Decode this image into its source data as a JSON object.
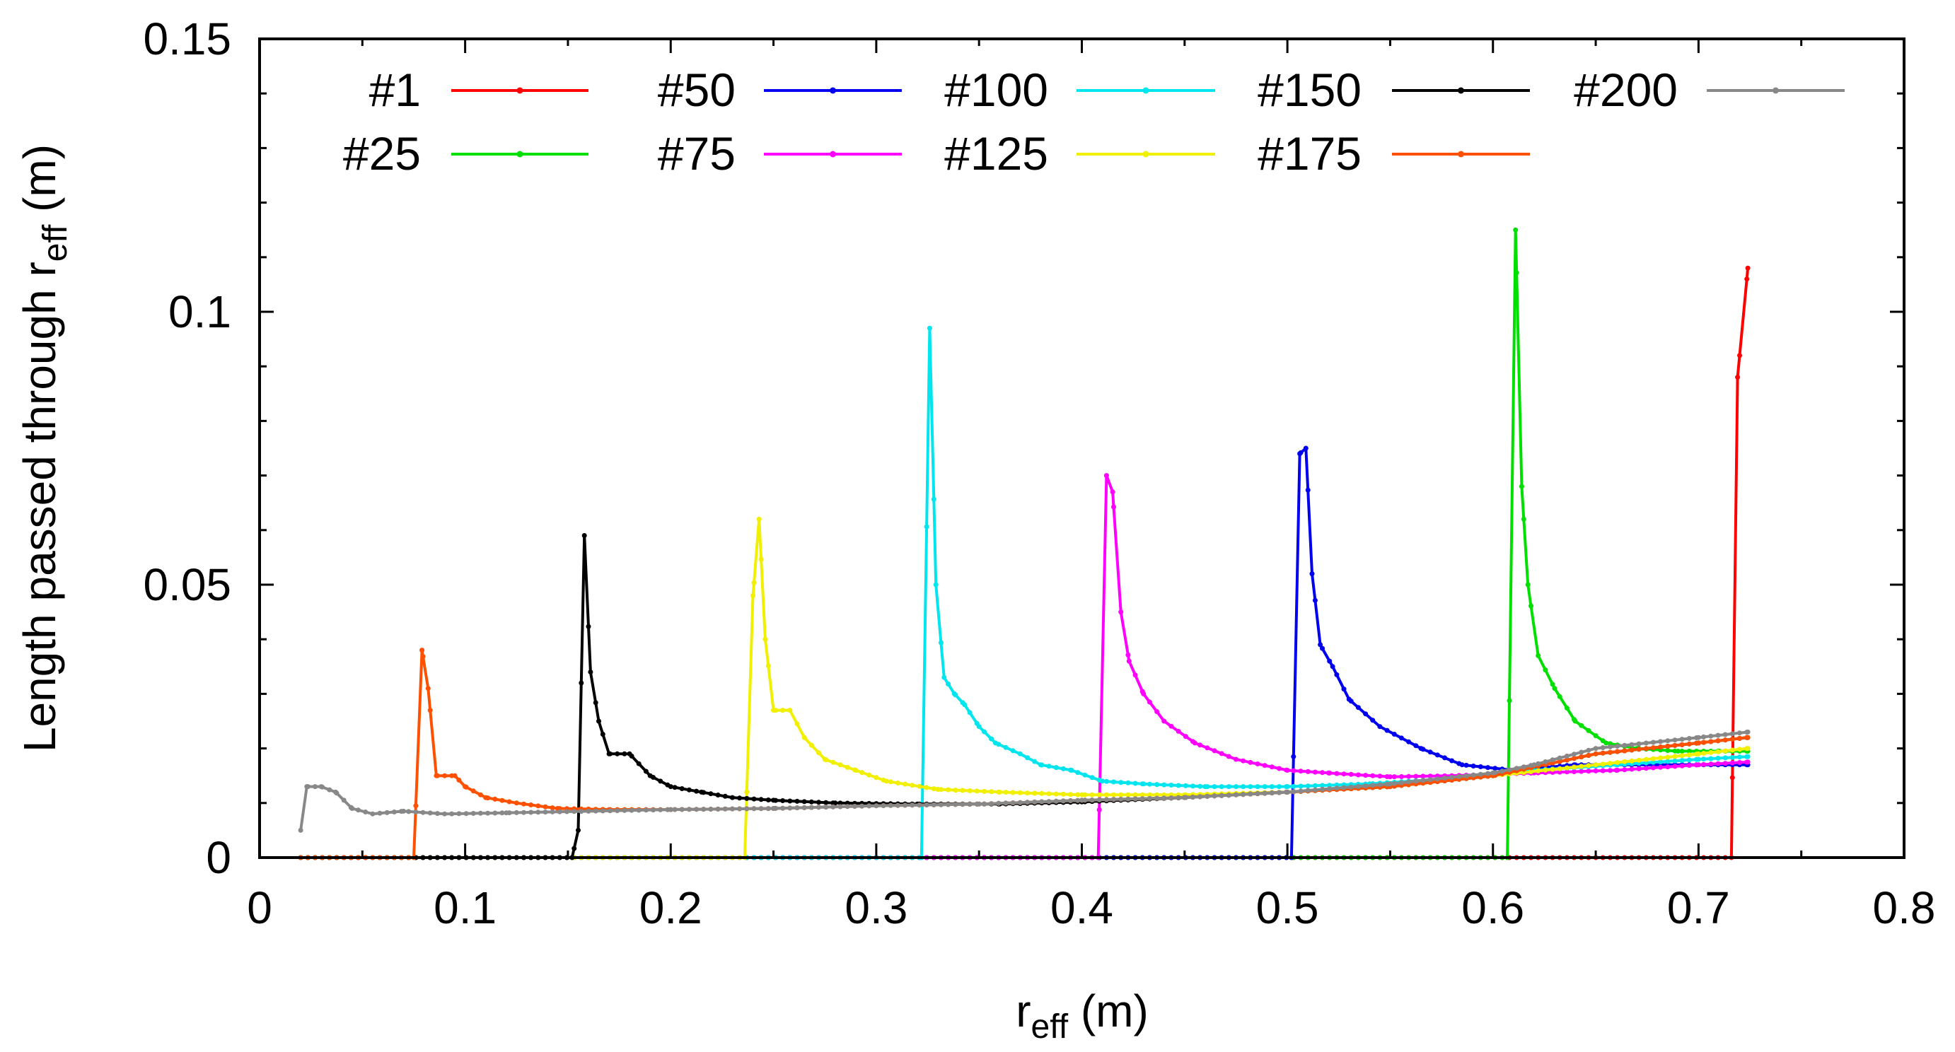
{
  "chart_data": {
    "type": "line",
    "title": "",
    "xlabel": {
      "main": "r",
      "sub": "eff",
      "unit": " (m)"
    },
    "ylabel": {
      "main": "Length passed through r",
      "sub": "eff",
      "unit": " (m)"
    },
    "xlim": [
      0,
      0.8
    ],
    "ylim": [
      0,
      0.15
    ],
    "xticks": [
      0,
      0.1,
      0.2,
      0.3,
      0.4,
      0.5,
      0.6,
      0.7,
      0.8
    ],
    "xtick_labels": [
      "0",
      "0.1",
      "0.2",
      "0.3",
      "0.4",
      "0.5",
      "0.6",
      "0.7",
      "0.8"
    ],
    "yticks": [
      0,
      0.05,
      0.1,
      0.15
    ],
    "ytick_labels": [
      "0",
      "0.05",
      "0.1",
      "0.15"
    ],
    "grid": false,
    "legend": "top, 2 rows",
    "series": [
      {
        "name": "#1",
        "color": "#ff0000",
        "x_end": 0.724,
        "points": [
          [
            0.02,
            0
          ],
          [
            0.716,
            0
          ],
          [
            0.719,
            0.088
          ],
          [
            0.724,
            0.108
          ]
        ]
      },
      {
        "name": "#25",
        "color": "#00e000",
        "x_end": 0.724,
        "points": [
          [
            0.02,
            0
          ],
          [
            0.607,
            0
          ],
          [
            0.611,
            0.115
          ],
          [
            0.614,
            0.068
          ],
          [
            0.617,
            0.05
          ],
          [
            0.622,
            0.037
          ],
          [
            0.63,
            0.031
          ],
          [
            0.64,
            0.025
          ],
          [
            0.655,
            0.021
          ],
          [
            0.67,
            0.02
          ],
          [
            0.69,
            0.0195
          ],
          [
            0.71,
            0.0195
          ],
          [
            0.724,
            0.0195
          ]
        ]
      },
      {
        "name": "#50",
        "color": "#0000ee",
        "x_end": 0.724,
        "points": [
          [
            0.02,
            0
          ],
          [
            0.502,
            0
          ],
          [
            0.506,
            0.074
          ],
          [
            0.509,
            0.075
          ],
          [
            0.512,
            0.052
          ],
          [
            0.516,
            0.039
          ],
          [
            0.522,
            0.035
          ],
          [
            0.53,
            0.029
          ],
          [
            0.545,
            0.024
          ],
          [
            0.565,
            0.02
          ],
          [
            0.585,
            0.017
          ],
          [
            0.61,
            0.016
          ],
          [
            0.64,
            0.017
          ],
          [
            0.68,
            0.017
          ],
          [
            0.724,
            0.017
          ]
        ]
      },
      {
        "name": "#75",
        "color": "#ff00ff",
        "x_end": 0.724,
        "points": [
          [
            0.02,
            0
          ],
          [
            0.408,
            0
          ],
          [
            0.412,
            0.07
          ],
          [
            0.415,
            0.067
          ],
          [
            0.419,
            0.045
          ],
          [
            0.423,
            0.036
          ],
          [
            0.43,
            0.03
          ],
          [
            0.44,
            0.025
          ],
          [
            0.455,
            0.021
          ],
          [
            0.475,
            0.018
          ],
          [
            0.5,
            0.016
          ],
          [
            0.52,
            0.0155
          ],
          [
            0.55,
            0.0148
          ],
          [
            0.58,
            0.015
          ],
          [
            0.62,
            0.0155
          ],
          [
            0.66,
            0.016
          ],
          [
            0.7,
            0.017
          ],
          [
            0.724,
            0.0175
          ]
        ]
      },
      {
        "name": "#100",
        "color": "#00e5ee",
        "x_end": 0.724,
        "points": [
          [
            0.02,
            0
          ],
          [
            0.322,
            0
          ],
          [
            0.326,
            0.097
          ],
          [
            0.329,
            0.05
          ],
          [
            0.333,
            0.033
          ],
          [
            0.338,
            0.03
          ],
          [
            0.343,
            0.028
          ],
          [
            0.35,
            0.024
          ],
          [
            0.358,
            0.021
          ],
          [
            0.37,
            0.019
          ],
          [
            0.38,
            0.017
          ],
          [
            0.395,
            0.016
          ],
          [
            0.41,
            0.014
          ],
          [
            0.43,
            0.0135
          ],
          [
            0.46,
            0.013
          ],
          [
            0.5,
            0.013
          ],
          [
            0.54,
            0.0135
          ],
          [
            0.58,
            0.0145
          ],
          [
            0.62,
            0.016
          ],
          [
            0.66,
            0.017
          ],
          [
            0.7,
            0.018
          ],
          [
            0.724,
            0.0185
          ]
        ]
      },
      {
        "name": "#125",
        "color": "#f0f000",
        "x_end": 0.724,
        "points": [
          [
            0.02,
            0
          ],
          [
            0.236,
            0
          ],
          [
            0.24,
            0.048
          ],
          [
            0.243,
            0.062
          ],
          [
            0.246,
            0.04
          ],
          [
            0.25,
            0.027
          ],
          [
            0.258,
            0.027
          ],
          [
            0.265,
            0.022
          ],
          [
            0.275,
            0.018
          ],
          [
            0.29,
            0.016
          ],
          [
            0.305,
            0.014
          ],
          [
            0.33,
            0.0125
          ],
          [
            0.36,
            0.012
          ],
          [
            0.4,
            0.0115
          ],
          [
            0.45,
            0.0115
          ],
          [
            0.5,
            0.012
          ],
          [
            0.55,
            0.013
          ],
          [
            0.6,
            0.015
          ],
          [
            0.65,
            0.017
          ],
          [
            0.7,
            0.019
          ],
          [
            0.724,
            0.02
          ]
        ]
      },
      {
        "name": "#150",
        "color": "#000000",
        "x_end": 0.724,
        "points": [
          [
            0.02,
            0
          ],
          [
            0.152,
            0
          ],
          [
            0.155,
            0.005
          ],
          [
            0.158,
            0.059
          ],
          [
            0.161,
            0.034
          ],
          [
            0.165,
            0.025
          ],
          [
            0.17,
            0.019
          ],
          [
            0.18,
            0.019
          ],
          [
            0.19,
            0.015
          ],
          [
            0.2,
            0.013
          ],
          [
            0.215,
            0.012
          ],
          [
            0.23,
            0.011
          ],
          [
            0.25,
            0.0105
          ],
          [
            0.28,
            0.01
          ],
          [
            0.32,
            0.0098
          ],
          [
            0.36,
            0.0098
          ],
          [
            0.4,
            0.0102
          ],
          [
            0.45,
            0.011
          ],
          [
            0.5,
            0.012
          ],
          [
            0.55,
            0.013
          ],
          [
            0.6,
            0.015
          ],
          [
            0.65,
            0.019
          ],
          [
            0.7,
            0.021
          ],
          [
            0.724,
            0.022
          ]
        ]
      },
      {
        "name": "#175",
        "color": "#ff5000",
        "x_end": 0.724,
        "points": [
          [
            0.02,
            0
          ],
          [
            0.075,
            0
          ],
          [
            0.079,
            0.038
          ],
          [
            0.082,
            0.031
          ],
          [
            0.086,
            0.015
          ],
          [
            0.095,
            0.015
          ],
          [
            0.1,
            0.013
          ],
          [
            0.11,
            0.011
          ],
          [
            0.125,
            0.01
          ],
          [
            0.145,
            0.009
          ],
          [
            0.17,
            0.0088
          ],
          [
            0.2,
            0.0088
          ],
          [
            0.25,
            0.009
          ],
          [
            0.3,
            0.0095
          ],
          [
            0.35,
            0.0098
          ],
          [
            0.4,
            0.0105
          ],
          [
            0.45,
            0.011
          ],
          [
            0.5,
            0.012
          ],
          [
            0.55,
            0.013
          ],
          [
            0.6,
            0.015
          ],
          [
            0.65,
            0.019
          ],
          [
            0.7,
            0.021
          ],
          [
            0.724,
            0.022
          ]
        ]
      },
      {
        "name": "#200",
        "color": "#888888",
        "x_end": 0.724,
        "points": [
          [
            0.02,
            0.005
          ],
          [
            0.023,
            0.013
          ],
          [
            0.03,
            0.013
          ],
          [
            0.037,
            0.012
          ],
          [
            0.045,
            0.009
          ],
          [
            0.055,
            0.008
          ],
          [
            0.07,
            0.0085
          ],
          [
            0.09,
            0.008
          ],
          [
            0.12,
            0.0082
          ],
          [
            0.16,
            0.0085
          ],
          [
            0.2,
            0.0088
          ],
          [
            0.25,
            0.009
          ],
          [
            0.3,
            0.0095
          ],
          [
            0.35,
            0.0098
          ],
          [
            0.4,
            0.0105
          ],
          [
            0.45,
            0.011
          ],
          [
            0.5,
            0.012
          ],
          [
            0.55,
            0.0135
          ],
          [
            0.6,
            0.0155
          ],
          [
            0.62,
            0.017
          ],
          [
            0.65,
            0.02
          ],
          [
            0.7,
            0.022
          ],
          [
            0.724,
            0.023
          ]
        ]
      }
    ]
  }
}
